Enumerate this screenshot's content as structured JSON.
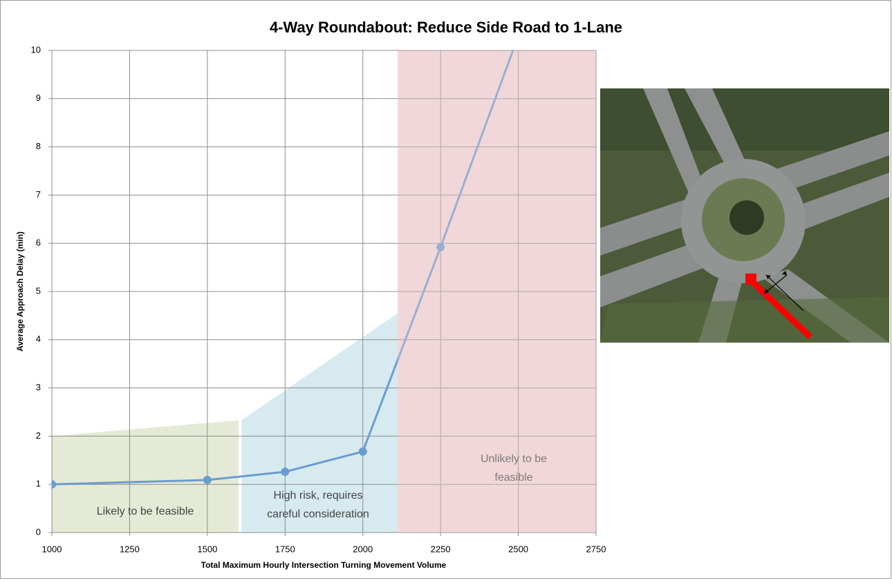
{
  "chart_data": {
    "type": "line",
    "title": "4-Way Roundabout:  Reduce Side Road to 1-Lane",
    "x_label": "Total Maximum Hourly Intersection Turning Movement Volume",
    "y_label": "Average Approach Delay (min)",
    "x": [
      1000,
      1500,
      1750,
      2000,
      2250,
      2500
    ],
    "series": [
      {
        "name": "Average Approach Delay",
        "color": "#6a9ccf",
        "values": [
          1.0,
          1.09,
          1.26,
          1.68,
          5.92,
          10.3
        ]
      }
    ],
    "xlim": [
      1000,
      2750
    ],
    "xticks": [
      1000,
      1250,
      1500,
      1750,
      2000,
      2250,
      2500,
      2750
    ],
    "ylim": [
      0,
      10
    ],
    "yticks": [
      0,
      1,
      2,
      3,
      4,
      5,
      6,
      7,
      8,
      9,
      10
    ],
    "grid": true,
    "zones": [
      {
        "label": [
          "Likely to be feasible"
        ],
        "color": "#e4ead5",
        "x": [
          1000,
          1600
        ],
        "y": [
          2.0,
          2.33
        ]
      },
      {
        "label": [
          "High risk, requires",
          "careful consideration"
        ],
        "color": "#d6eaf0",
        "x": [
          1610,
          2112
        ],
        "y": [
          2.33,
          4.55
        ]
      },
      {
        "label": [
          "Unlikely to be",
          "feasible"
        ],
        "color": "#f1d8d9",
        "x": [
          2112,
          2750
        ],
        "y": [
          10,
          10
        ]
      }
    ]
  }
}
